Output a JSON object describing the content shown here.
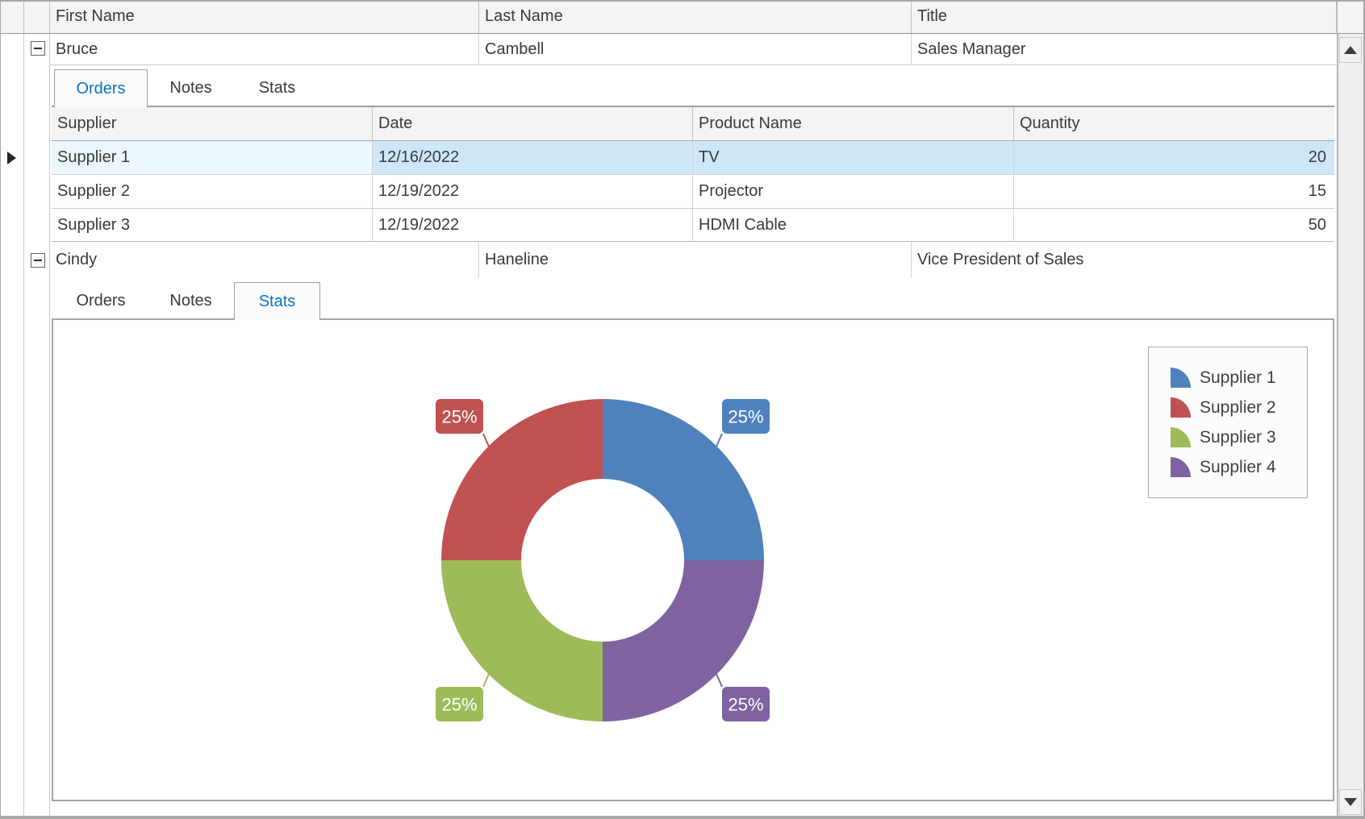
{
  "master": {
    "columns": [
      "First Name",
      "Last Name",
      "Title"
    ],
    "rows": [
      {
        "first_name": "Bruce",
        "last_name": "Cambell",
        "title": "Sales Manager",
        "expanded": true,
        "tabs": [
          "Orders",
          "Notes",
          "Stats"
        ],
        "active_tab": "Orders"
      },
      {
        "first_name": "Cindy",
        "last_name": "Haneline",
        "title": "Vice President of Sales",
        "expanded": true,
        "tabs": [
          "Orders",
          "Notes",
          "Stats"
        ],
        "active_tab": "Stats"
      }
    ]
  },
  "orders_detail": {
    "columns": [
      "Supplier",
      "Date",
      "Product Name",
      "Quantity"
    ],
    "rows": [
      {
        "supplier": "Supplier 1",
        "date": "12/16/2022",
        "product_name": "TV",
        "quantity": "20",
        "selected": true
      },
      {
        "supplier": "Supplier 2",
        "date": "12/19/2022",
        "product_name": "Projector",
        "quantity": "15",
        "selected": false
      },
      {
        "supplier": "Supplier 3",
        "date": "12/19/2022",
        "product_name": "HDMI Cable",
        "quantity": "50",
        "selected": false
      }
    ]
  },
  "chart_data": {
    "type": "pie",
    "subtype": "donut",
    "hole_ratio": 0.5,
    "series": [
      {
        "name": "Supplier 1",
        "value": 25,
        "label": "25%",
        "color": "#4f81bd"
      },
      {
        "name": "Supplier 2",
        "value": 25,
        "label": "25%",
        "color": "#bf5150"
      },
      {
        "name": "Supplier 3",
        "value": 25,
        "label": "25%",
        "color": "#9fba59"
      },
      {
        "name": "Supplier 4",
        "value": 25,
        "label": "25%",
        "color": "#7f63a1"
      }
    ],
    "clockwise_order_from_top": [
      "Supplier 1",
      "Supplier 4",
      "Supplier 3",
      "Supplier 2"
    ],
    "legend_position": "top-right",
    "units": "percent"
  },
  "colors": {
    "selection_row": "#cde7f8",
    "selection_cell": "#ecf6fd",
    "active_tab_text": "#0b74c4",
    "header_bg": "#f4f4f4"
  },
  "icons": {
    "collapse_glyph": "minus-box",
    "row_indicator": "right-triangle",
    "scroll_up": "up-triangle",
    "scroll_down": "down-triangle"
  }
}
